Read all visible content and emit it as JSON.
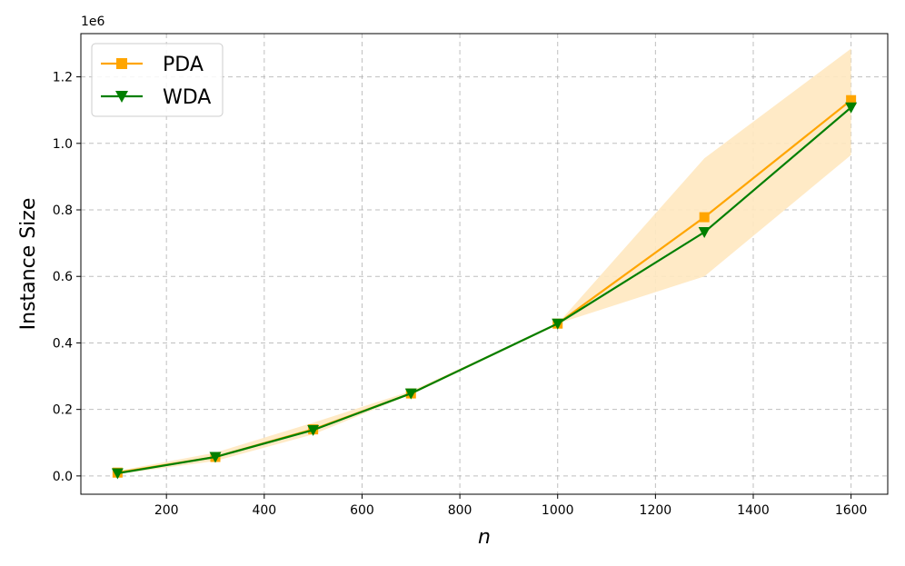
{
  "chart_data": {
    "type": "line",
    "title": "",
    "xlabel": "n",
    "ylabel": "Instance Size",
    "y_multiplier_label": "1e6",
    "xlim": [
      25,
      1675
    ],
    "ylim": [
      -0.055,
      1.33
    ],
    "x_ticks": [
      200,
      400,
      600,
      800,
      1000,
      1200,
      1400,
      1600
    ],
    "y_ticks": [
      0.0,
      0.2,
      0.4,
      0.6,
      0.8,
      1.0,
      1.2
    ],
    "y_tick_labels": [
      "0.0",
      "0.2",
      "0.4",
      "0.6",
      "0.8",
      "1.0",
      "1.2"
    ],
    "grid": true,
    "legend_position": "top-left",
    "x": [
      100,
      300,
      500,
      700,
      1000,
      1300,
      1600
    ],
    "series": [
      {
        "name": "PDA",
        "marker": "square",
        "color": "#FFA500",
        "values": [
          0.01,
          0.057,
          0.14,
          0.248,
          0.458,
          0.778,
          1.13
        ],
        "band_lower": [
          0.005,
          0.045,
          0.125,
          0.245,
          0.458,
          0.6,
          0.965
        ],
        "band_upper": [
          0.015,
          0.07,
          0.16,
          0.255,
          0.458,
          0.955,
          1.285
        ],
        "band_color": "#FFE8C0"
      },
      {
        "name": "WDA",
        "marker": "triangle-down",
        "color": "#007F00",
        "values": [
          0.008,
          0.057,
          0.138,
          0.248,
          0.458,
          0.733,
          1.108
        ]
      }
    ]
  }
}
